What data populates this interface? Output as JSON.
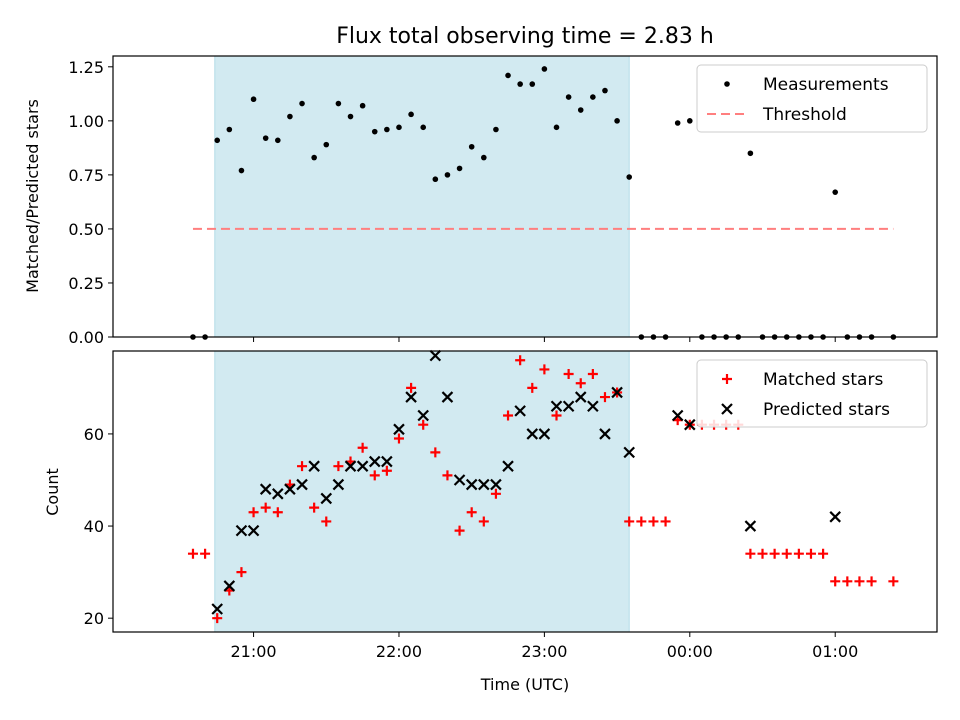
{
  "title": "Flux total observing time = 2.83 h",
  "colors": {
    "shade": "#add8e6",
    "measurement": "#000000",
    "threshold": "#ff7f7f",
    "matched": "#ff0000",
    "predicted": "#000000"
  },
  "x_ticks": [
    {
      "minutes": 1260,
      "label": "21:00"
    },
    {
      "minutes": 1320,
      "label": "22:00"
    },
    {
      "minutes": 1380,
      "label": "23:00"
    },
    {
      "minutes": 1440,
      "label": "00:00"
    },
    {
      "minutes": 1500,
      "label": "01:00"
    }
  ],
  "xlabel": "Time (UTC)",
  "shaded_span": {
    "start": "20:44",
    "end": "23:35"
  },
  "chart_data": [
    {
      "type": "scatter",
      "ylabel": "Matched/Predicted stars",
      "ylim": [
        0,
        1.3
      ],
      "y_ticks": [
        "0.00",
        "0.25",
        "0.50",
        "0.75",
        "1.00",
        "1.25"
      ],
      "legend": {
        "position": "top-right",
        "entries": [
          "Measurements",
          "Threshold"
        ]
      },
      "threshold": {
        "value": 0.5,
        "x_start": "20:35",
        "x_end": "01:24"
      },
      "series": [
        {
          "name": "Measurements",
          "points": [
            [
              "20:35",
              0
            ],
            [
              "20:40",
              0
            ],
            [
              "20:45",
              0.91
            ],
            [
              "20:50",
              0.96
            ],
            [
              "20:55",
              0.77
            ],
            [
              "21:00",
              1.1
            ],
            [
              "21:05",
              0.92
            ],
            [
              "21:10",
              0.91
            ],
            [
              "21:15",
              1.02
            ],
            [
              "21:20",
              1.08
            ],
            [
              "21:25",
              0.83
            ],
            [
              "21:30",
              0.89
            ],
            [
              "21:35",
              1.08
            ],
            [
              "21:40",
              1.02
            ],
            [
              "21:45",
              1.07
            ],
            [
              "21:50",
              0.95
            ],
            [
              "21:55",
              0.96
            ],
            [
              "22:00",
              0.97
            ],
            [
              "22:05",
              1.03
            ],
            [
              "22:10",
              0.97
            ],
            [
              "22:15",
              0.73
            ],
            [
              "22:20",
              0.75
            ],
            [
              "22:25",
              0.78
            ],
            [
              "22:30",
              0.88
            ],
            [
              "22:35",
              0.83
            ],
            [
              "22:40",
              0.96
            ],
            [
              "22:45",
              1.21
            ],
            [
              "22:50",
              1.17
            ],
            [
              "22:55",
              1.17
            ],
            [
              "23:00",
              1.24
            ],
            [
              "23:05",
              0.97
            ],
            [
              "23:10",
              1.11
            ],
            [
              "23:15",
              1.05
            ],
            [
              "23:20",
              1.11
            ],
            [
              "23:25",
              1.14
            ],
            [
              "23:30",
              1.0
            ],
            [
              "23:35",
              0.74
            ],
            [
              "23:40",
              0
            ],
            [
              "23:45",
              0
            ],
            [
              "23:50",
              0
            ],
            [
              "23:55",
              0.99
            ],
            [
              "00:00",
              1.0
            ],
            [
              "00:05",
              0
            ],
            [
              "00:10",
              0
            ],
            [
              "00:15",
              0
            ],
            [
              "00:20",
              0
            ],
            [
              "00:25",
              0.85
            ],
            [
              "00:30",
              0
            ],
            [
              "00:35",
              0
            ],
            [
              "00:40",
              0
            ],
            [
              "00:45",
              0
            ],
            [
              "00:50",
              0
            ],
            [
              "00:55",
              0
            ],
            [
              "01:00",
              0.67
            ],
            [
              "01:05",
              0
            ],
            [
              "01:10",
              0
            ],
            [
              "01:15",
              0
            ],
            [
              "01:24",
              0
            ]
          ]
        }
      ]
    },
    {
      "type": "scatter",
      "ylabel": "Count",
      "ylim": [
        17,
        78
      ],
      "y_ticks": [
        "20",
        "40",
        "60"
      ],
      "legend": {
        "position": "top-right",
        "entries": [
          "Matched stars",
          "Predicted stars"
        ]
      },
      "series": [
        {
          "name": "Matched stars",
          "marker": "plus",
          "points": [
            [
              "20:35",
              34
            ],
            [
              "20:40",
              34
            ],
            [
              "20:45",
              20
            ],
            [
              "20:50",
              26
            ],
            [
              "20:55",
              30
            ],
            [
              "21:00",
              43
            ],
            [
              "21:05",
              44
            ],
            [
              "21:10",
              43
            ],
            [
              "21:15",
              49
            ],
            [
              "21:20",
              53
            ],
            [
              "21:25",
              44
            ],
            [
              "21:30",
              41
            ],
            [
              "21:35",
              53
            ],
            [
              "21:40",
              54
            ],
            [
              "21:45",
              57
            ],
            [
              "21:50",
              51
            ],
            [
              "21:55",
              52
            ],
            [
              "22:00",
              59
            ],
            [
              "22:05",
              70
            ],
            [
              "22:10",
              62
            ],
            [
              "22:15",
              56
            ],
            [
              "22:20",
              51
            ],
            [
              "22:25",
              39
            ],
            [
              "22:30",
              43
            ],
            [
              "22:35",
              41
            ],
            [
              "22:40",
              47
            ],
            [
              "22:45",
              64
            ],
            [
              "22:50",
              76
            ],
            [
              "22:55",
              70
            ],
            [
              "23:00",
              74
            ],
            [
              "23:05",
              64
            ],
            [
              "23:10",
              73
            ],
            [
              "23:15",
              71
            ],
            [
              "23:20",
              73
            ],
            [
              "23:25",
              68
            ],
            [
              "23:30",
              69
            ],
            [
              "23:35",
              41
            ],
            [
              "23:40",
              41
            ],
            [
              "23:45",
              41
            ],
            [
              "23:50",
              41
            ],
            [
              "23:55",
              63
            ],
            [
              "00:00",
              62
            ],
            [
              "00:05",
              62
            ],
            [
              "00:10",
              62
            ],
            [
              "00:15",
              62
            ],
            [
              "00:20",
              62
            ],
            [
              "00:25",
              34
            ],
            [
              "00:30",
              34
            ],
            [
              "00:35",
              34
            ],
            [
              "00:40",
              34
            ],
            [
              "00:45",
              34
            ],
            [
              "00:50",
              34
            ],
            [
              "00:55",
              34
            ],
            [
              "01:00",
              28
            ],
            [
              "01:05",
              28
            ],
            [
              "01:10",
              28
            ],
            [
              "01:15",
              28
            ],
            [
              "01:24",
              28
            ]
          ]
        },
        {
          "name": "Predicted stars",
          "marker": "x",
          "points": [
            [
              "20:45",
              22
            ],
            [
              "20:50",
              27
            ],
            [
              "20:55",
              39
            ],
            [
              "21:00",
              39
            ],
            [
              "21:05",
              48
            ],
            [
              "21:10",
              47
            ],
            [
              "21:15",
              48
            ],
            [
              "21:20",
              49
            ],
            [
              "21:25",
              53
            ],
            [
              "21:30",
              46
            ],
            [
              "21:35",
              49
            ],
            [
              "21:40",
              53
            ],
            [
              "21:45",
              53
            ],
            [
              "21:50",
              54
            ],
            [
              "21:55",
              54
            ],
            [
              "22:00",
              61
            ],
            [
              "22:05",
              68
            ],
            [
              "22:10",
              64
            ],
            [
              "22:15",
              77
            ],
            [
              "22:20",
              68
            ],
            [
              "22:25",
              50
            ],
            [
              "22:30",
              49
            ],
            [
              "22:35",
              49
            ],
            [
              "22:40",
              49
            ],
            [
              "22:45",
              53
            ],
            [
              "22:50",
              65
            ],
            [
              "22:55",
              60
            ],
            [
              "23:00",
              60
            ],
            [
              "23:05",
              66
            ],
            [
              "23:10",
              66
            ],
            [
              "23:15",
              68
            ],
            [
              "23:20",
              66
            ],
            [
              "23:25",
              60
            ],
            [
              "23:30",
              69
            ],
            [
              "23:35",
              56
            ],
            [
              "23:55",
              64
            ],
            [
              "00:00",
              62
            ],
            [
              "00:25",
              40
            ],
            [
              "01:00",
              42
            ]
          ]
        }
      ]
    }
  ]
}
